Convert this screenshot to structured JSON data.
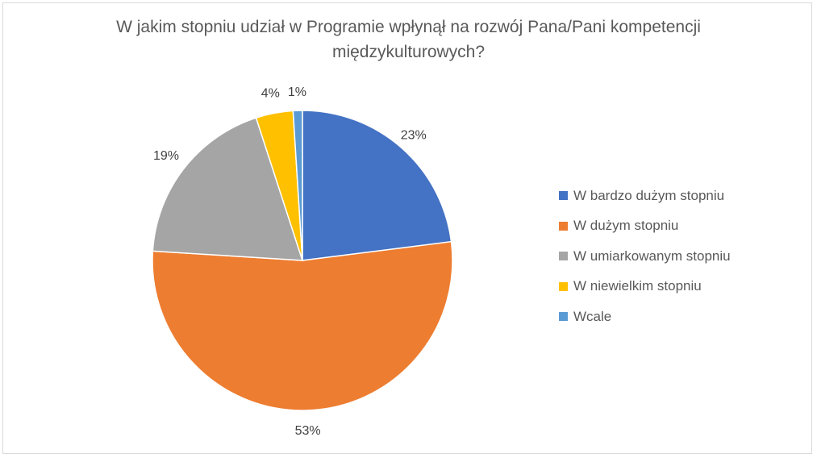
{
  "chart_data": {
    "type": "pie",
    "title": "W jakim stopniu udział w Programie wpłynął na rozwój Pana/Pani kompetencji międzykulturowych?",
    "title_lines": [
      "W jakim stopniu udział w Programie wpłynął na rozwój Pana/Pani kompetencji",
      "międzykulturowych?"
    ],
    "categories": [
      "W bardzo dużym stopniu",
      "W dużym stopniu",
      "W umiarkowanym stopniu",
      "W niewielkim stopniu",
      "Wcale"
    ],
    "values": [
      23,
      53,
      19,
      4,
      1
    ],
    "data_labels": [
      "23%",
      "53%",
      "19%",
      "4%",
      "1%"
    ],
    "colors": [
      "#4472C4",
      "#ED7D31",
      "#A5A5A5",
      "#FFC000",
      "#5B9BD5"
    ],
    "start_angle_deg": 0,
    "direction": "clockwise",
    "legend_position": "right"
  }
}
